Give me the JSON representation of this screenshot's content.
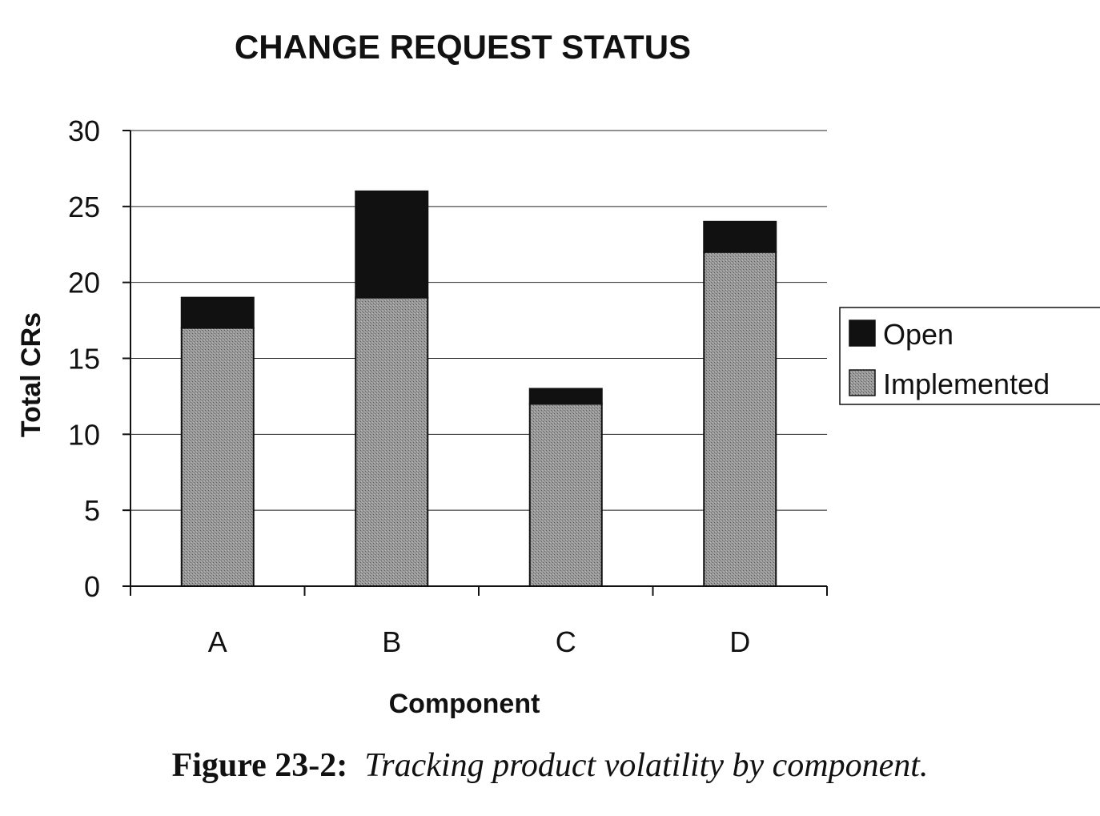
{
  "chart_data": {
    "type": "bar",
    "stacked": true,
    "title": "CHANGE REQUEST STATUS",
    "xlabel": "Component",
    "ylabel": "Total CRs",
    "categories": [
      "A",
      "B",
      "C",
      "D"
    ],
    "ylim": [
      0,
      30
    ],
    "yticks": [
      "0",
      "5",
      "10",
      "15",
      "20",
      "25",
      "30"
    ],
    "grid": true,
    "legend_position": "right",
    "series": [
      {
        "name": "Implemented",
        "values": [
          17,
          19,
          12,
          22
        ],
        "color": "#8a8a8a"
      },
      {
        "name": "Open",
        "values": [
          2,
          7,
          1,
          2
        ],
        "color": "#111111"
      }
    ],
    "legend_order": [
      "Open",
      "Implemented"
    ]
  },
  "caption": {
    "label": "Figure 23-2:",
    "text": "Tracking product volatility by component."
  }
}
